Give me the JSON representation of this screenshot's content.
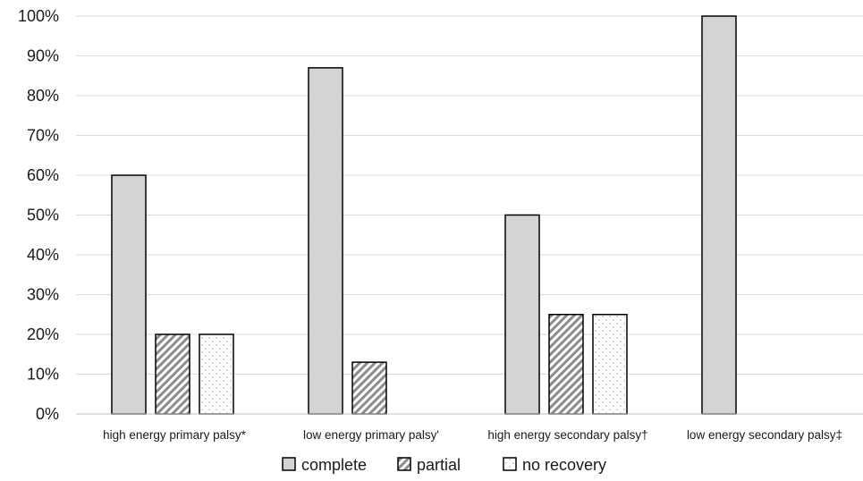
{
  "chart_data": {
    "type": "bar",
    "title": "",
    "xlabel": "",
    "ylabel": "",
    "ylim": [
      0,
      100
    ],
    "y_ticks": [
      "0%",
      "10%",
      "20%",
      "30%",
      "40%",
      "50%",
      "60%",
      "70%",
      "80%",
      "90%",
      "100%"
    ],
    "categories": [
      "high energy primary palsy*",
      "low energy primary palsy'",
      "high energy secondary palsy†",
      "low energy secondary palsy‡"
    ],
    "series": [
      {
        "name": "complete",
        "values": [
          60,
          87,
          50,
          100
        ],
        "fill": "#d4d4d4",
        "pattern": "solid"
      },
      {
        "name": "partial",
        "values": [
          20,
          13,
          25,
          0
        ],
        "fill": "#9a9a9a",
        "pattern": "diagonal-hatch"
      },
      {
        "name": "no recovery",
        "values": [
          20,
          0,
          25,
          0
        ],
        "fill": "#ffffff",
        "pattern": "light-dots"
      }
    ],
    "grid": true,
    "legend_position": "bottom"
  }
}
